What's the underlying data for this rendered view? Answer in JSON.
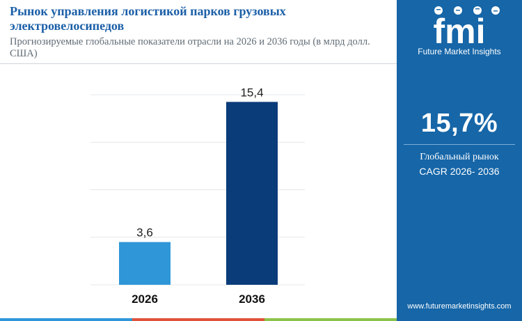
{
  "header": {
    "title": "Рынок управления логистикой парков грузовых электровелосипедов",
    "subtitle": "Прогнозируемые глобальные показатели отрасли на 2026 и 2036 годы (в млрд долл. США)"
  },
  "chart_data": {
    "type": "bar",
    "categories": [
      "2026",
      "2036"
    ],
    "values": [
      3.6,
      15.4
    ],
    "value_labels": [
      "3,6",
      "15,4"
    ],
    "bar_colors": [
      "#2f97d8",
      "#0b3c7a"
    ],
    "ylim": [
      0,
      18
    ],
    "grid": true
  },
  "sidebar": {
    "logo_text": "fmi",
    "brand": "Future Market Insights",
    "stat_value": "15,7%",
    "stat_label_1": "Глобальный рынок",
    "stat_label_2": "CAGR 2026- 2036",
    "website": "www.futuremarketinsights.com"
  },
  "colors": {
    "title": "#1b5fa8",
    "sidebar": "#1666a8",
    "footer": [
      "#2f97d8",
      "#e0533a",
      "#8bc34a"
    ]
  }
}
